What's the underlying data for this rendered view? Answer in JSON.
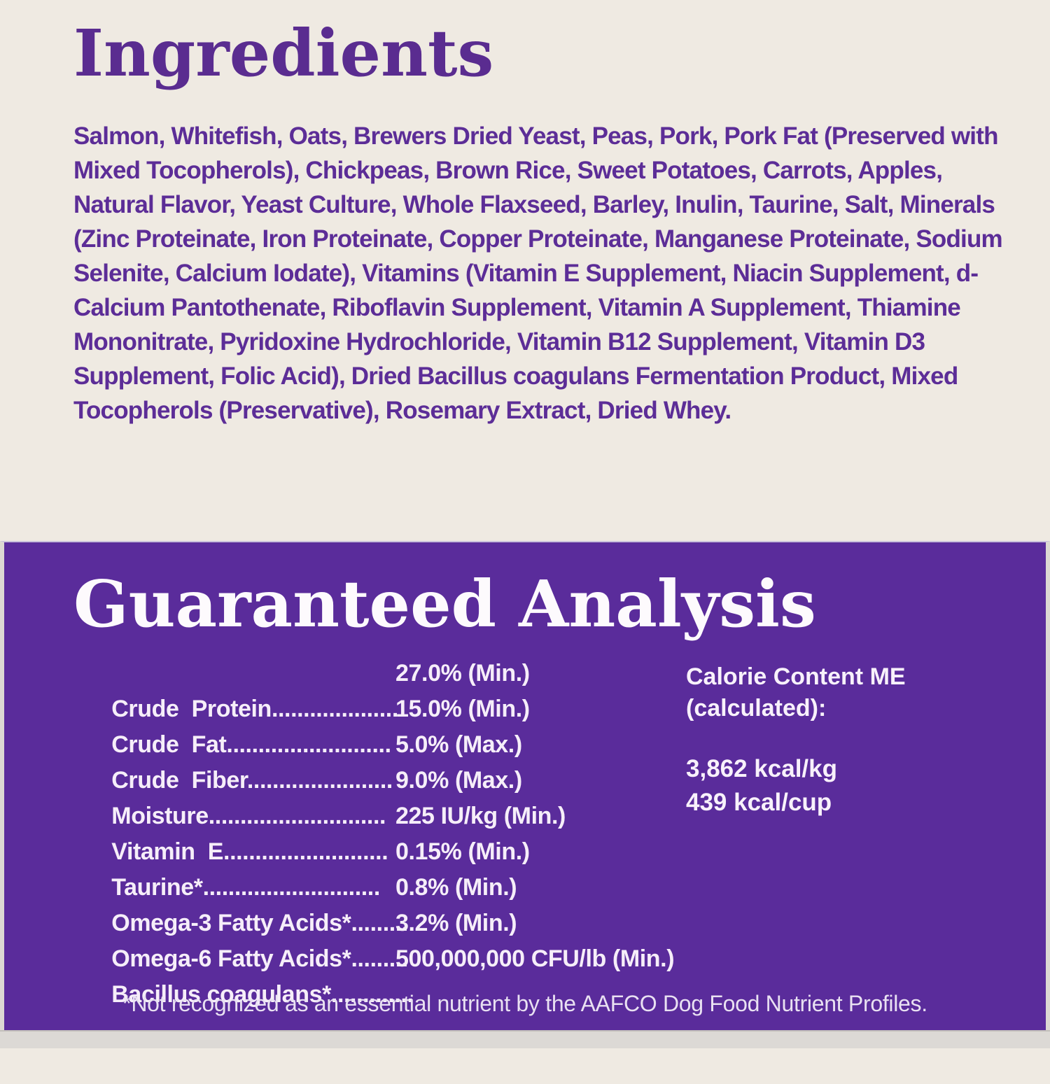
{
  "colors": {
    "cream_background": "#efeae2",
    "purple_background": "#5a2c9b",
    "purple_heading_text": "#5a2c90",
    "purple_body_text": "#5c2d97",
    "white_text": "#f6eef9",
    "bottom_strip": "#dcd9d5"
  },
  "ingredients": {
    "title": "Ingredients",
    "body": "Salmon, Whitefish, Oats, Brewers Dried Yeast, Peas, Pork, Pork Fat (Preserved with Mixed Tocopherols), Chickpeas, Brown Rice, Sweet Potatoes, Carrots, Apples, Natural Flavor, Yeast Culture, Whole Flaxseed, Barley, Inulin, Taurine, Salt, Minerals (Zinc Proteinate, Iron Proteinate, Copper Proteinate, Manganese Proteinate, Sodium Selenite, Calcium Iodate), Vitamins (Vitamin E Supplement, Niacin Supplement, d-Calcium Pantothenate, Riboflavin Supplement, Vitamin A Supplement, Thiamine Mononitrate, Pyridoxine Hydrochloride, Vitamin B12 Supplement, Vitamin D3 Supplement, Folic Acid), Dried Bacillus coagulans Fermentation Product, Mixed Tocopherols (Preservative), Rosemary Extract, Dried Whey."
  },
  "analysis": {
    "title": "Guaranteed Analysis",
    "rows": [
      {
        "name": "Crude  Protein",
        "dots": "....................",
        "value": "27.0% (Min.)"
      },
      {
        "name": "Crude  Fat",
        "dots": "..........................",
        "value": "15.0% (Min.)"
      },
      {
        "name": "Crude  Fiber",
        "dots": ".......................",
        "value": "5.0% (Max.)"
      },
      {
        "name": "Moisture",
        "dots": "............................",
        "value": "9.0% (Max.)"
      },
      {
        "name": "Vitamin  E",
        "dots": "..........................",
        "value": "225 IU/kg (Min.)"
      },
      {
        "name": "Taurine*",
        "dots": "............................",
        "value": "0.15% (Min.)"
      },
      {
        "name": "Omega-3 Fatty Acids*",
        "dots": ".........",
        "value": "0.8% (Min.)"
      },
      {
        "name": "Omega-6 Fatty Acids*",
        "dots": ".........",
        "value": "3.2% (Min.)"
      },
      {
        "name": "Bacillus coagulans*",
        "dots": ".............",
        "value": "500,000,000 CFU/lb (Min.)"
      }
    ],
    "calorie": {
      "heading_line1": "Calorie Content ME",
      "heading_line2": "(calculated):",
      "kcal_per_kg": "3,862 kcal/kg",
      "kcal_per_cup": "439 kcal/cup"
    },
    "footnote": "*Not recognized as an essential nutrient by the AAFCO Dog Food Nutrient Profiles."
  }
}
